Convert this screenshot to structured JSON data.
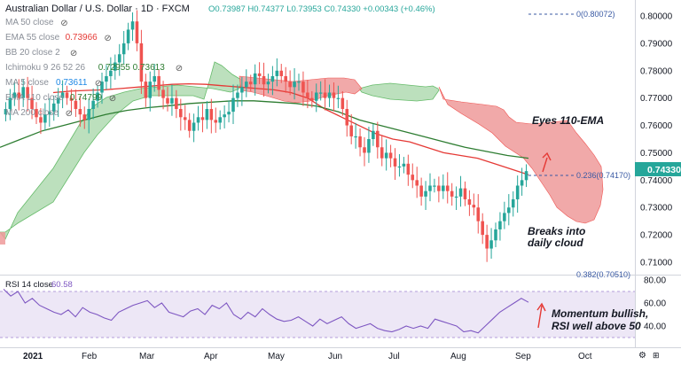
{
  "header": {
    "title": "Australian Dollar / U.S. Dollar · 1D · FXCM",
    "ohlc": "O0.73987 H0.74377 L0.73953 C0.74330 +0.00343 (+0.46%)"
  },
  "legend": [
    {
      "label": "MA 50 close",
      "value": "",
      "color": "#9aa0a6"
    },
    {
      "label": "EMA 55 close",
      "value": "0.73966",
      "color": "#e53935"
    },
    {
      "label": "BB 20 close 2",
      "value": "",
      "color": "#9aa0a6"
    },
    {
      "label": "Ichimoku 9 26 52 26",
      "value": "0.72955 0.73613",
      "color": "#2e7d32"
    },
    {
      "label": "MA 5 close",
      "value": "0.73611",
      "color": "#1e88e5"
    },
    {
      "label": "EMA 110 close",
      "value": "0.74799",
      "color": "#2e7d32"
    },
    {
      "label": "MA 200 close",
      "value": "",
      "color": "#9aa0a6"
    }
  ],
  "price_axis": {
    "ticks": [
      "0.80000",
      "0.79000",
      "0.78000",
      "0.77000",
      "0.76000",
      "0.75000",
      "0.74000",
      "0.73000",
      "0.72000",
      "0.71000"
    ],
    "current": "0.74330",
    "current_color": "#26a69a"
  },
  "rsi_axis": {
    "ticks": [
      "80.00",
      "60.00",
      "40.00"
    ]
  },
  "x_axis": {
    "labels": [
      "2021",
      "Feb",
      "Mar",
      "Apr",
      "May",
      "Jun",
      "Jul",
      "Aug",
      "Sep",
      "Oct"
    ]
  },
  "fib": {
    "top": "0(0.80072)",
    "mid": "0.236(0.74170)",
    "bottom": "0.382(0.70510)"
  },
  "rsi": {
    "label": "RSI 14 close",
    "value": "60.58",
    "color": "#7e57c2"
  },
  "annotations": {
    "eyes_ema": "Eyes 110-EMA",
    "breaks_1": "Breaks into",
    "breaks_2": "daily cloud",
    "momentum_1": "Momentum bullish,",
    "momentum_2": "RSI well above 50"
  },
  "colors": {
    "up": "#26a69a",
    "down": "#ef5350",
    "ema55": "#e53935",
    "ema110": "#2e7d32",
    "cloud_green": "#a5d6a7",
    "cloud_red": "#ef9a9a",
    "rsi_band": "#ede7f6"
  },
  "chart_data": {
    "type": "candlestick",
    "instrument": "Australian Dollar / U.S. Dollar",
    "timeframe": "1D",
    "ylim": [
      0.705,
      0.805
    ],
    "months_x": [
      "2021",
      "Feb",
      "Mar",
      "Apr",
      "May",
      "Jun",
      "Jul",
      "Aug",
      "Sep",
      "Oct"
    ],
    "closes": [
      0.766,
      0.77,
      0.772,
      0.77,
      0.774,
      0.77,
      0.766,
      0.763,
      0.761,
      0.764,
      0.765,
      0.768,
      0.77,
      0.772,
      0.77,
      0.769,
      0.766,
      0.764,
      0.762,
      0.766,
      0.769,
      0.772,
      0.776,
      0.778,
      0.78,
      0.783,
      0.786,
      0.79,
      0.795,
      0.798,
      0.79,
      0.776,
      0.77,
      0.776,
      0.778,
      0.773,
      0.77,
      0.768,
      0.77,
      0.766,
      0.763,
      0.762,
      0.758,
      0.761,
      0.763,
      0.762,
      0.766,
      0.762,
      0.761,
      0.763,
      0.764,
      0.765,
      0.77,
      0.772,
      0.774,
      0.776,
      0.775,
      0.779,
      0.778,
      0.775,
      0.776,
      0.778,
      0.78,
      0.778,
      0.776,
      0.774,
      0.776,
      0.776,
      0.772,
      0.77,
      0.769,
      0.772,
      0.772,
      0.77,
      0.772,
      0.77,
      0.77,
      0.766,
      0.76,
      0.756,
      0.756,
      0.752,
      0.75,
      0.755,
      0.758,
      0.752,
      0.748,
      0.75,
      0.748,
      0.745,
      0.745,
      0.746,
      0.742,
      0.74,
      0.738,
      0.734,
      0.736,
      0.738,
      0.738,
      0.736,
      0.738,
      0.736,
      0.734,
      0.734,
      0.737,
      0.733,
      0.731,
      0.73,
      0.725,
      0.72,
      0.715,
      0.718,
      0.722,
      0.725,
      0.728,
      0.73,
      0.733,
      0.738,
      0.74,
      0.7433
    ],
    "ema55": [
      0.772,
      0.7725,
      0.7728,
      0.773,
      0.7735,
      0.774,
      0.7745,
      0.775,
      0.7752,
      0.775,
      0.7745,
      0.774,
      0.7735,
      0.773,
      0.772,
      0.77,
      0.766,
      0.763,
      0.76,
      0.757,
      0.755,
      0.754,
      0.752,
      0.75,
      0.749,
      0.748,
      0.746,
      0.744,
      0.742
    ],
    "ema110": [
      0.752,
      0.755,
      0.758,
      0.76,
      0.762,
      0.764,
      0.7655,
      0.7665,
      0.7672,
      0.768,
      0.7685,
      0.769,
      0.769,
      0.7685,
      0.768,
      0.767,
      0.765,
      0.762,
      0.76,
      0.758,
      0.756,
      0.754,
      0.752,
      0.7505,
      0.749,
      0.748
    ],
    "rsi14": [
      72,
      66,
      70,
      60,
      64,
      58,
      55,
      52,
      50,
      54,
      48,
      56,
      52,
      50,
      47,
      45,
      52,
      55,
      58,
      60,
      62,
      56,
      60,
      52,
      50,
      48,
      53,
      55,
      50,
      58,
      55,
      60,
      50,
      46,
      52,
      48,
      55,
      50,
      46,
      44,
      45,
      48,
      44,
      40,
      46,
      42,
      45,
      48,
      42,
      38,
      40,
      42,
      38,
      36,
      35,
      37,
      40,
      38,
      40,
      38,
      46,
      44,
      42,
      40,
      35,
      36,
      34,
      40,
      46,
      52,
      56,
      60,
      64,
      60.58
    ],
    "rsi_band": [
      30,
      70
    ]
  }
}
